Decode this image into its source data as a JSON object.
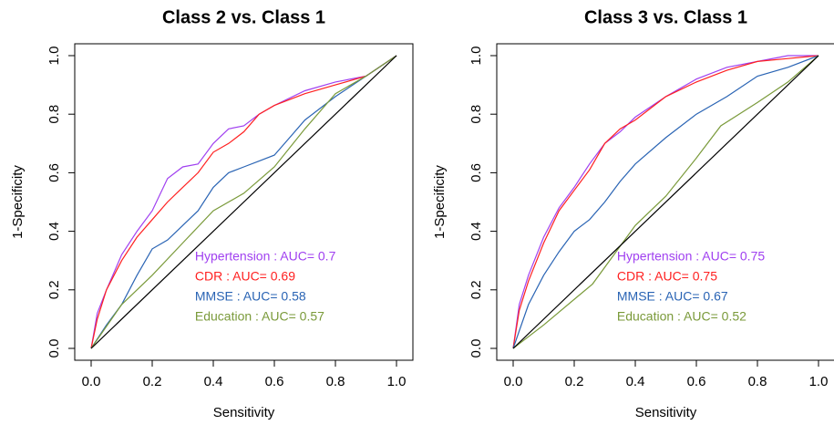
{
  "chart_data": [
    {
      "type": "line",
      "title": "Class  2  vs. Class 1",
      "x_label": "Sensitivity",
      "y_label": "1-Specificity",
      "xlim": [
        0,
        1
      ],
      "ylim": [
        0,
        1
      ],
      "xticks": [
        {
          "value": 0,
          "label": "0.0"
        },
        0.2,
        0.4,
        0.6,
        0.8,
        {
          "value": 1,
          "label": "1.0"
        }
      ],
      "yticks": [
        {
          "value": 0,
          "label": "0.0"
        },
        0.2,
        0.4,
        0.6,
        0.8,
        {
          "value": 1,
          "label": "1.0"
        }
      ],
      "legend": "bottom-right",
      "series": [
        {
          "name": "Hypertension :  AUC= 0.7",
          "color": "#a040f0",
          "x": [
            0,
            0.02,
            0.05,
            0.1,
            0.15,
            0.2,
            0.25,
            0.3,
            0.35,
            0.4,
            0.45,
            0.5,
            0.55,
            0.6,
            0.7,
            0.8,
            0.9,
            1
          ],
          "values": [
            0,
            0.12,
            0.2,
            0.32,
            0.4,
            0.47,
            0.58,
            0.62,
            0.63,
            0.7,
            0.75,
            0.76,
            0.8,
            0.83,
            0.88,
            0.91,
            0.93,
            1
          ]
        },
        {
          "name": "CDR :  AUC= 0.69",
          "color": "#ff2020",
          "x": [
            0,
            0.02,
            0.05,
            0.1,
            0.15,
            0.2,
            0.25,
            0.3,
            0.35,
            0.4,
            0.45,
            0.5,
            0.55,
            0.6,
            0.7,
            0.8,
            0.9,
            1
          ],
          "values": [
            0,
            0.1,
            0.2,
            0.3,
            0.38,
            0.44,
            0.5,
            0.55,
            0.6,
            0.67,
            0.7,
            0.74,
            0.8,
            0.83,
            0.87,
            0.9,
            0.93,
            1
          ]
        },
        {
          "name": "MMSE :  AUC= 0.58",
          "color": "#2a64b4",
          "x": [
            0,
            0.05,
            0.1,
            0.15,
            0.2,
            0.25,
            0.3,
            0.35,
            0.4,
            0.45,
            0.5,
            0.55,
            0.6,
            0.65,
            0.7,
            0.8,
            0.9,
            1
          ],
          "values": [
            0,
            0.08,
            0.15,
            0.25,
            0.34,
            0.37,
            0.42,
            0.47,
            0.55,
            0.6,
            0.62,
            0.64,
            0.66,
            0.72,
            0.78,
            0.86,
            0.93,
            1
          ]
        },
        {
          "name": "Education :  AUC= 0.57",
          "color": "#7a9a3a",
          "x": [
            0,
            0.1,
            0.2,
            0.3,
            0.4,
            0.5,
            0.6,
            0.7,
            0.8,
            0.9,
            1
          ],
          "values": [
            0,
            0.15,
            0.25,
            0.36,
            0.47,
            0.53,
            0.62,
            0.75,
            0.87,
            0.93,
            1
          ]
        },
        {
          "color": "#000000",
          "x": [
            0,
            1
          ],
          "values": [
            0,
            1
          ]
        }
      ]
    },
    {
      "type": "line",
      "title": "Class  3  vs. Class 1",
      "x_label": "Sensitivity",
      "y_label": "1-Specificity",
      "xlim": [
        0,
        1
      ],
      "ylim": [
        0,
        1
      ],
      "xticks": [
        {
          "value": 0,
          "label": "0.0"
        },
        0.2,
        0.4,
        0.6,
        0.8,
        {
          "value": 1,
          "label": "1.0"
        }
      ],
      "yticks": [
        {
          "value": 0,
          "label": "0.0"
        },
        0.2,
        0.4,
        0.6,
        0.8,
        {
          "value": 1,
          "label": "1.0"
        }
      ],
      "legend": "bottom-right",
      "series": [
        {
          "name": "Hypertension :  AUC= 0.75",
          "color": "#a040f0",
          "x": [
            0,
            0.02,
            0.05,
            0.1,
            0.15,
            0.2,
            0.25,
            0.3,
            0.35,
            0.4,
            0.5,
            0.6,
            0.7,
            0.8,
            0.9,
            1
          ],
          "values": [
            0,
            0.15,
            0.25,
            0.38,
            0.48,
            0.55,
            0.63,
            0.7,
            0.74,
            0.79,
            0.86,
            0.92,
            0.96,
            0.98,
            1,
            1
          ]
        },
        {
          "name": "CDR :  AUC= 0.75",
          "color": "#ff2020",
          "x": [
            0,
            0.02,
            0.05,
            0.1,
            0.15,
            0.2,
            0.25,
            0.3,
            0.35,
            0.4,
            0.5,
            0.6,
            0.7,
            0.8,
            0.9,
            1
          ],
          "values": [
            0,
            0.13,
            0.23,
            0.36,
            0.47,
            0.54,
            0.61,
            0.7,
            0.75,
            0.78,
            0.86,
            0.91,
            0.95,
            0.98,
            0.99,
            1
          ]
        },
        {
          "name": "MMSE :  AUC= 0.67",
          "color": "#2a64b4",
          "x": [
            0,
            0.05,
            0.1,
            0.15,
            0.2,
            0.25,
            0.3,
            0.35,
            0.4,
            0.5,
            0.6,
            0.7,
            0.8,
            0.9,
            1
          ],
          "values": [
            0,
            0.15,
            0.25,
            0.33,
            0.4,
            0.44,
            0.5,
            0.57,
            0.63,
            0.72,
            0.8,
            0.86,
            0.93,
            0.96,
            1
          ]
        },
        {
          "name": "Education :  AUC= 0.52",
          "color": "#7a9a3a",
          "x": [
            0,
            0.1,
            0.26,
            0.4,
            0.5,
            0.6,
            0.68,
            0.8,
            0.9,
            1
          ],
          "values": [
            0,
            0.08,
            0.22,
            0.42,
            0.52,
            0.65,
            0.76,
            0.84,
            0.91,
            1
          ]
        },
        {
          "color": "#000000",
          "x": [
            0,
            1
          ],
          "values": [
            0,
            1
          ]
        }
      ]
    }
  ]
}
